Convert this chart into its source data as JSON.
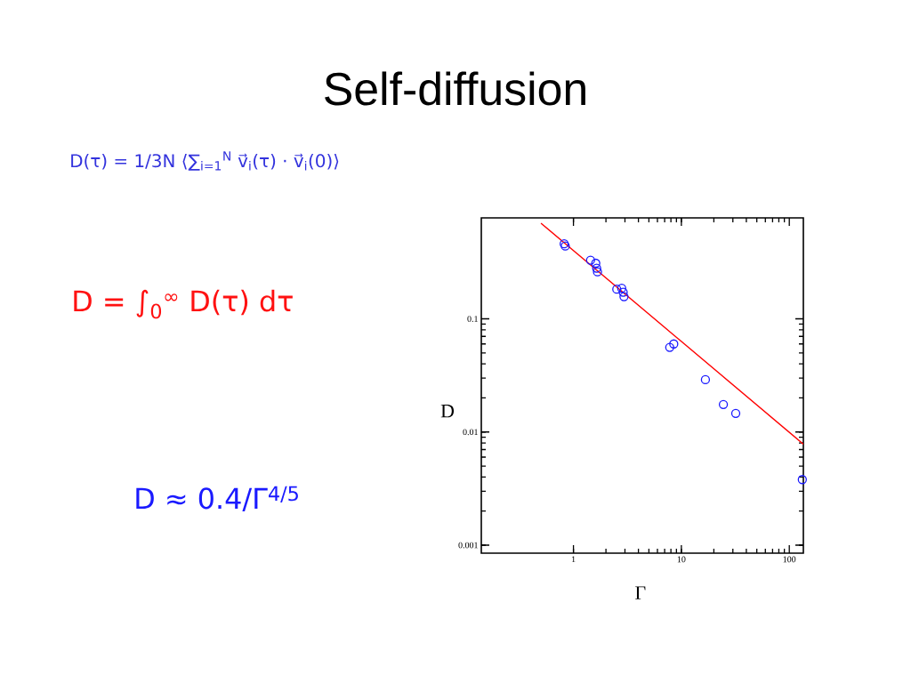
{
  "chart_data": {
    "type": "scatter",
    "title": "Self-diffusion",
    "annotations": [
      "D(τ) = 1/3N ⟨∑$_{i=1}$$^{N}$ v⃗$_{i}$(τ) · v⃗$_{i}$(0)⟩",
      "D = ∫$_{0}$$^{∞}$ D(τ) dτ",
      "D ≈ 0.4/Γ$^{4/5}$"
    ],
    "xlabel": "Γ",
    "ylabel": "D",
    "log": "xy",
    "xlim": [
      0.14,
      135
    ],
    "ylim": [
      0.00085,
      0.78
    ],
    "xticks": [
      1,
      10,
      100
    ],
    "yticks": [
      0.001,
      0.01,
      0.1
    ],
    "series": [
      {
        "color": "#1a1aff",
        "marker": "circle",
        "x": [
          0.82,
          0.84,
          1.44,
          1.61,
          1.64,
          1.67,
          2.52,
          2.8,
          2.89,
          2.94,
          7.8,
          8.5,
          16.7,
          24.5,
          31.9,
          132
        ],
        "values": [
          0.46,
          0.44,
          0.33,
          0.31,
          0.28,
          0.26,
          0.183,
          0.186,
          0.172,
          0.157,
          0.056,
          0.06,
          0.029,
          0.0175,
          0.0146,
          0.0038
        ]
      },
      {
        "type": "line",
        "color": "#ff0000",
        "x": [
          0.5,
          135
        ],
        "values": [
          0.7,
          0.0078
        ]
      }
    ]
  }
}
